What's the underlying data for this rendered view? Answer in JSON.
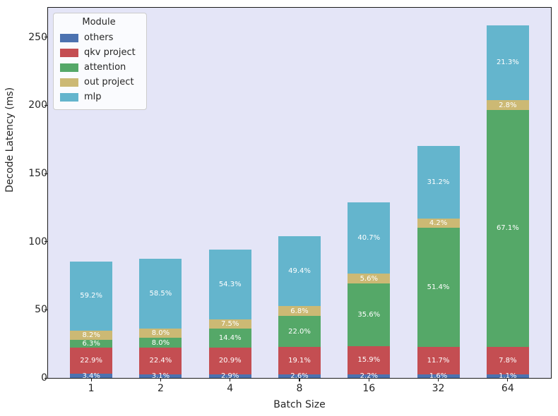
{
  "figure": {
    "background_color": "#ffffff",
    "plot_background_color": "#e4e5f7",
    "spine_color": "#1a1a1a",
    "text_color": "#262626",
    "bar_label_color": "#ffffff"
  },
  "chart_data": {
    "type": "bar",
    "stacked": true,
    "title": "",
    "xlabel": "Batch Size",
    "ylabel": "Decode Latency (ms)",
    "categories": [
      "1",
      "2",
      "4",
      "8",
      "16",
      "32",
      "64"
    ],
    "yticks": [
      0,
      50,
      100,
      150,
      200,
      250
    ],
    "ylim": [
      0,
      271.6
    ],
    "grid": false,
    "legend": {
      "title": "Module",
      "position": "upper-left"
    },
    "series": [
      {
        "name": "others",
        "color": "#4c72b0",
        "values_ms": [
          2.9,
          2.7,
          2.7,
          2.7,
          2.8,
          2.7,
          2.8
        ],
        "percent_labels": [
          "3.4%",
          "3.1%",
          "2.9%",
          "2.6%",
          "2.2%",
          "1.6%",
          "1.1%"
        ]
      },
      {
        "name": "qkv project",
        "color": "#c44e52",
        "values_ms": [
          19.6,
          19.6,
          19.7,
          19.9,
          20.5,
          19.9,
          20.2
        ],
        "percent_labels": [
          "22.9%",
          "22.4%",
          "20.9%",
          "19.1%",
          "15.9%",
          "11.7%",
          "7.8%"
        ]
      },
      {
        "name": "attention",
        "color": "#55a868",
        "values_ms": [
          5.4,
          7.0,
          13.6,
          22.9,
          45.9,
          87.4,
          173.6
        ],
        "percent_labels": [
          "6.3%",
          "8.0%",
          "14.4%",
          "22.0%",
          "35.6%",
          "51.4%",
          "67.1%"
        ]
      },
      {
        "name": "out project",
        "color": "#ccb974",
        "values_ms": [
          7.0,
          7.0,
          7.1,
          7.1,
          7.2,
          7.1,
          7.2
        ],
        "percent_labels": [
          "8.2%",
          "8.0%",
          "7.5%",
          "6.8%",
          "5.6%",
          "4.2%",
          "2.8%"
        ]
      },
      {
        "name": "mlp",
        "color": "#64b5cd",
        "values_ms": [
          50.6,
          51.1,
          51.3,
          51.5,
          52.4,
          53.1,
          55.1
        ],
        "percent_labels": [
          "59.2%",
          "58.5%",
          "54.3%",
          "49.4%",
          "40.7%",
          "31.2%",
          "21.3%"
        ]
      }
    ],
    "totals_ms": [
      85.5,
      87.4,
      94.4,
      104.1,
      128.8,
      170.2,
      258.9
    ]
  }
}
